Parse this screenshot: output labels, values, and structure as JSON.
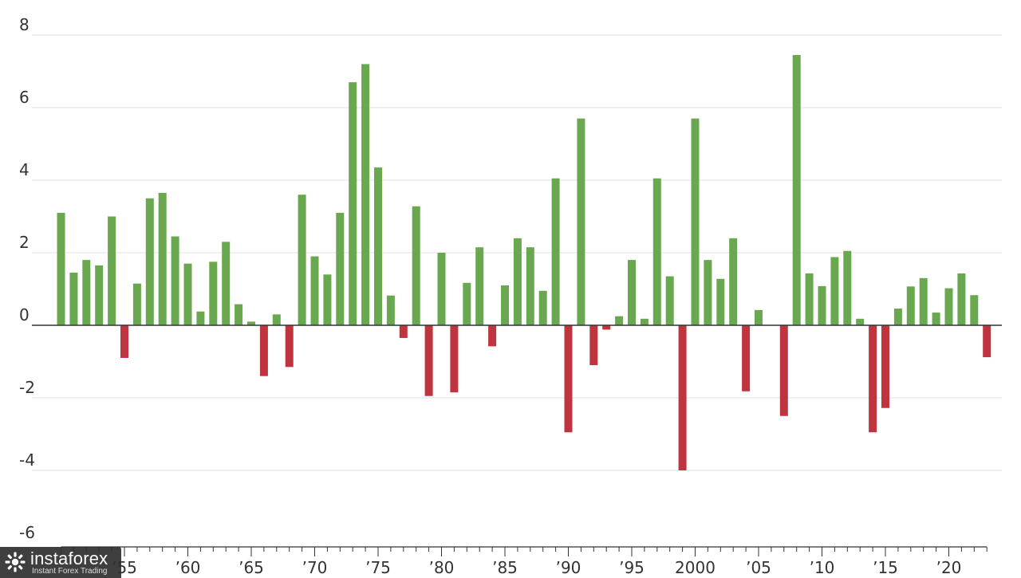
{
  "chart_data": {
    "type": "bar",
    "title": "",
    "xlabel": "",
    "ylabel": "",
    "ylim": [
      -6,
      8
    ],
    "yticks": [
      8,
      6,
      4,
      2,
      0,
      -2,
      -4,
      -6
    ],
    "grid": true,
    "legend": "none",
    "x_tick_labels": [
      {
        "year": 1955,
        "label": "’55"
      },
      {
        "year": 1960,
        "label": "’60"
      },
      {
        "year": 1965,
        "label": "’65"
      },
      {
        "year": 1970,
        "label": "’70"
      },
      {
        "year": 1975,
        "label": "’75"
      },
      {
        "year": 1980,
        "label": "’80"
      },
      {
        "year": 1985,
        "label": "’85"
      },
      {
        "year": 1990,
        "label": "’90"
      },
      {
        "year": 1995,
        "label": "’95"
      },
      {
        "year": 2000,
        "label": "2000"
      },
      {
        "year": 2005,
        "label": "’05"
      },
      {
        "year": 2010,
        "label": "’10"
      },
      {
        "year": 2015,
        "label": "’15"
      },
      {
        "year": 2020,
        "label": "’20"
      }
    ],
    "colors": {
      "positive": "#6aa84f",
      "negative": "#c0343f"
    },
    "categories": [
      1950,
      1951,
      1952,
      1953,
      1954,
      1955,
      1956,
      1957,
      1958,
      1959,
      1960,
      1961,
      1962,
      1963,
      1964,
      1965,
      1966,
      1967,
      1968,
      1969,
      1970,
      1971,
      1972,
      1973,
      1974,
      1975,
      1976,
      1977,
      1978,
      1979,
      1980,
      1981,
      1982,
      1983,
      1984,
      1985,
      1986,
      1987,
      1988,
      1989,
      1990,
      1991,
      1992,
      1993,
      1994,
      1995,
      1996,
      1997,
      1998,
      1999,
      2000,
      2001,
      2002,
      2003,
      2004,
      2005,
      2006,
      2007,
      2008,
      2009,
      2010,
      2011,
      2012,
      2013,
      2014,
      2015,
      2016,
      2017,
      2018,
      2019,
      2020,
      2021,
      2022,
      2023
    ],
    "values": [
      3.1,
      1.45,
      1.8,
      1.65,
      3.0,
      -0.9,
      1.15,
      3.5,
      3.65,
      2.45,
      1.7,
      0.38,
      1.75,
      2.3,
      0.58,
      0.1,
      -1.4,
      0.3,
      -1.15,
      3.6,
      1.9,
      1.4,
      3.1,
      6.7,
      7.2,
      4.35,
      0.82,
      -0.35,
      3.28,
      -1.95,
      2.0,
      -1.85,
      1.17,
      2.15,
      -0.58,
      1.1,
      2.4,
      2.15,
      0.95,
      4.05,
      -2.95,
      5.7,
      -1.1,
      -0.12,
      0.25,
      1.8,
      0.18,
      4.05,
      1.35,
      -4.0,
      5.7,
      1.8,
      1.28,
      2.4,
      -1.82,
      0.42,
      0.0,
      -2.5,
      7.45,
      1.43,
      1.08,
      1.88,
      2.05,
      0.18,
      -2.95,
      -2.28,
      0.46,
      1.07,
      1.3,
      0.35,
      1.02,
      1.43,
      0.83,
      -0.88
    ]
  },
  "watermark": {
    "brand": "instaforex",
    "tagline": "Instant Forex Trading",
    "icon": "instaforex-logo-icon"
  }
}
